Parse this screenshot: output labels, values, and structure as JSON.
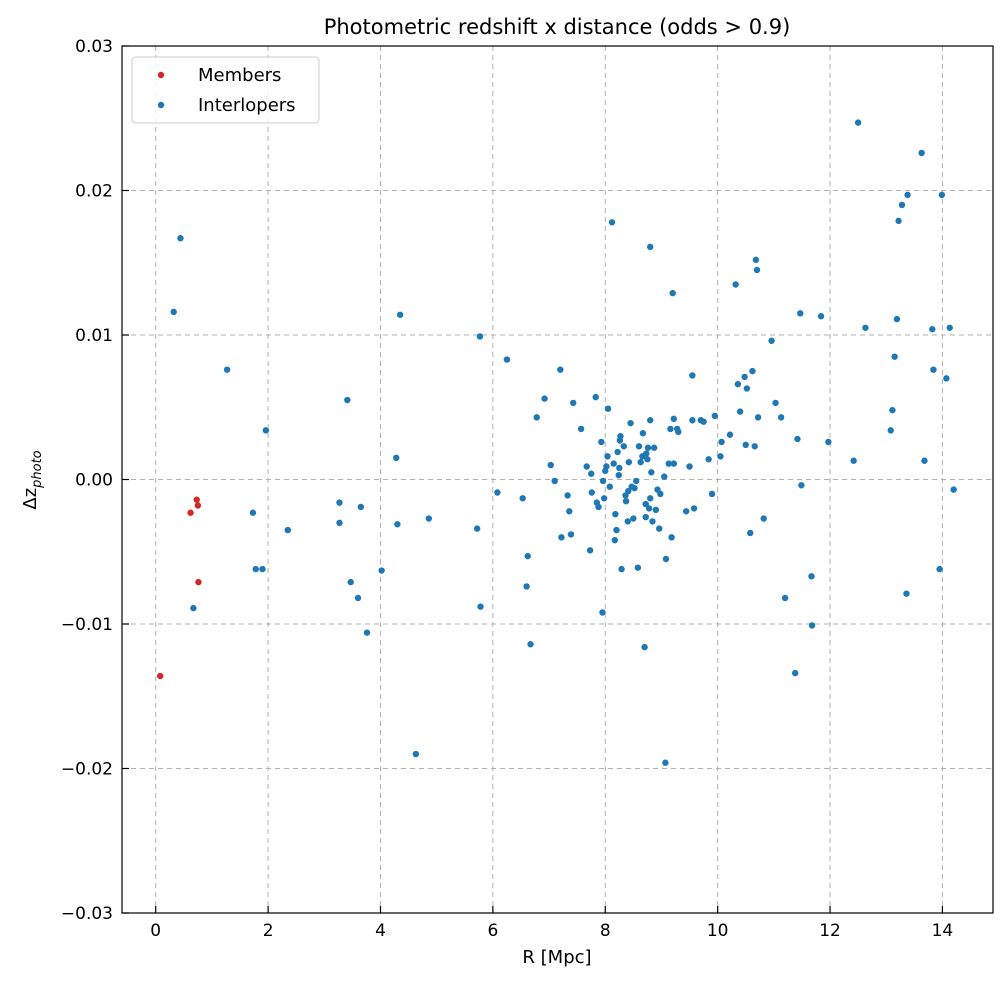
{
  "chart_data": {
    "type": "scatter",
    "title": "Photometric redshift x distance (odds > 0.9)",
    "xlabel": "R [Mpc]",
    "ylabel_main": "Δz",
    "ylabel_sub": "photo",
    "xlim": [
      -0.6,
      14.9
    ],
    "ylim": [
      -0.03,
      0.03
    ],
    "xticks": [
      0,
      2,
      4,
      6,
      8,
      10,
      12,
      14
    ],
    "xtick_labels": [
      "0",
      "2",
      "4",
      "6",
      "8",
      "10",
      "12",
      "14"
    ],
    "yticks": [
      -0.03,
      -0.02,
      -0.01,
      0.0,
      0.01,
      0.02,
      0.03
    ],
    "ytick_labels": [
      "−0.03",
      "−0.02",
      "−0.01",
      "0.00",
      "0.01",
      "0.02",
      "0.03"
    ],
    "grid": true,
    "legend_position": "top-left",
    "series": [
      {
        "name": "Members",
        "color": "#d62728",
        "points": [
          [
            0.08,
            -0.0136
          ],
          [
            0.62,
            -0.0023
          ],
          [
            0.73,
            -0.0014
          ],
          [
            0.75,
            -0.0018
          ],
          [
            0.76,
            -0.0071
          ]
        ]
      },
      {
        "name": "Interlopers",
        "color": "#1f77b4",
        "points": [
          [
            0.44,
            0.0167
          ],
          [
            0.32,
            0.0116
          ],
          [
            0.67,
            -0.0089
          ],
          [
            1.27,
            0.0076
          ],
          [
            1.73,
            -0.0023
          ],
          [
            1.78,
            -0.0062
          ],
          [
            1.9,
            -0.0062
          ],
          [
            1.96,
            0.0034
          ],
          [
            2.35,
            -0.0035
          ],
          [
            3.27,
            -0.0016
          ],
          [
            3.27,
            -0.003
          ],
          [
            3.41,
            0.0055
          ],
          [
            3.47,
            -0.0071
          ],
          [
            3.6,
            -0.0082
          ],
          [
            3.65,
            -0.0019
          ],
          [
            3.76,
            -0.0106
          ],
          [
            4.02,
            -0.0063
          ],
          [
            4.28,
            0.0015
          ],
          [
            4.3,
            -0.0031
          ],
          [
            4.35,
            0.0114
          ],
          [
            4.63,
            -0.019
          ],
          [
            4.86,
            -0.0027
          ],
          [
            5.72,
            -0.0034
          ],
          [
            5.77,
            0.0099
          ],
          [
            5.78,
            -0.0088
          ],
          [
            6.08,
            -0.0009
          ],
          [
            6.25,
            0.0083
          ],
          [
            6.53,
            -0.0013
          ],
          [
            6.6,
            -0.0074
          ],
          [
            6.62,
            -0.0053
          ],
          [
            6.67,
            -0.0114
          ],
          [
            6.78,
            0.0043
          ],
          [
            6.92,
            0.0056
          ],
          [
            7.03,
            0.001
          ],
          [
            7.1,
            -0.0001
          ],
          [
            7.2,
            0.0076
          ],
          [
            7.22,
            -0.004
          ],
          [
            7.33,
            -0.0011
          ],
          [
            7.36,
            -0.0022
          ],
          [
            7.39,
            -0.0038
          ],
          [
            7.43,
            0.0053
          ],
          [
            7.57,
            0.0035
          ],
          [
            7.67,
            0.0009
          ],
          [
            7.73,
            -0.0049
          ],
          [
            7.75,
            0.0004
          ],
          [
            7.76,
            -0.0009
          ],
          [
            7.83,
            0.0057
          ],
          [
            7.85,
            -0.0016
          ],
          [
            7.88,
            -0.0019
          ],
          [
            7.93,
            0.0026
          ],
          [
            7.95,
            -0.0092
          ],
          [
            7.96,
            -0.0001
          ],
          [
            7.98,
            -0.0013
          ],
          [
            8.0,
            0.0006
          ],
          [
            8.02,
            0.0009
          ],
          [
            8.04,
            0.0016
          ],
          [
            8.05,
            0.0049
          ],
          [
            8.08,
            -0.0005
          ],
          [
            8.12,
            0.0178
          ],
          [
            8.15,
            0.0011
          ],
          [
            8.17,
            -0.0042
          ],
          [
            8.18,
            -0.0024
          ],
          [
            8.2,
            -0.0035
          ],
          [
            8.22,
            0.0019
          ],
          [
            8.24,
            0.0003
          ],
          [
            8.25,
            0.0008
          ],
          [
            8.26,
            0.0027
          ],
          [
            8.27,
            0.003
          ],
          [
            8.29,
            -0.0062
          ],
          [
            8.33,
            0.0023
          ],
          [
            8.36,
            -0.0011
          ],
          [
            8.37,
            -0.0015
          ],
          [
            8.4,
            -0.0029
          ],
          [
            8.41,
            -0.0008
          ],
          [
            8.42,
            0.0012
          ],
          [
            8.45,
            0.0039
          ],
          [
            8.47,
            -0.0005
          ],
          [
            8.5,
            -0.0027
          ],
          [
            8.52,
            -0.0006
          ],
          [
            8.55,
            -0.0001
          ],
          [
            8.58,
            -0.0061
          ],
          [
            8.6,
            0.0023
          ],
          [
            8.63,
            0.0012
          ],
          [
            8.66,
            0.0016
          ],
          [
            8.67,
            0.0032
          ],
          [
            8.7,
            -0.0116
          ],
          [
            8.72,
            -0.0026
          ],
          [
            8.72,
            -0.0017
          ],
          [
            8.73,
            0.0018
          ],
          [
            8.75,
            0.0014
          ],
          [
            8.76,
            0.0022
          ],
          [
            8.78,
            -0.002
          ],
          [
            8.8,
            -0.0013
          ],
          [
            8.8,
            0.0041
          ],
          [
            8.8,
            0.0161
          ],
          [
            8.82,
            0.0005
          ],
          [
            8.84,
            -0.0029
          ],
          [
            8.87,
            0.0022
          ],
          [
            8.9,
            -0.0021
          ],
          [
            8.93,
            -0.0007
          ],
          [
            8.96,
            -0.0034
          ],
          [
            8.98,
            -0.001
          ],
          [
            9.05,
            0.0002
          ],
          [
            9.07,
            -0.0196
          ],
          [
            9.08,
            -0.0055
          ],
          [
            9.13,
            0.0011
          ],
          [
            9.16,
            0.0035
          ],
          [
            9.18,
            -0.004
          ],
          [
            9.2,
            0.0129
          ],
          [
            9.22,
            0.0042
          ],
          [
            9.22,
            0.0011
          ],
          [
            9.28,
            0.0035
          ],
          [
            9.3,
            0.0033
          ],
          [
            9.44,
            -0.0022
          ],
          [
            9.5,
            0.0009
          ],
          [
            9.55,
            0.0072
          ],
          [
            9.55,
            0.0041
          ],
          [
            9.58,
            -0.002
          ],
          [
            9.7,
            0.0041
          ],
          [
            9.75,
            0.004
          ],
          [
            9.84,
            0.0014
          ],
          [
            9.9,
            -0.001
          ],
          [
            9.95,
            0.0044
          ],
          [
            10.05,
            0.0016
          ],
          [
            10.07,
            0.0026
          ],
          [
            10.22,
            0.0031
          ],
          [
            10.32,
            0.0135
          ],
          [
            10.36,
            0.0066
          ],
          [
            10.4,
            0.0047
          ],
          [
            10.48,
            0.0071
          ],
          [
            10.5,
            0.0024
          ],
          [
            10.52,
            0.0063
          ],
          [
            10.58,
            -0.0037
          ],
          [
            10.62,
            0.0075
          ],
          [
            10.66,
            0.0023
          ],
          [
            10.68,
            0.0152
          ],
          [
            10.7,
            0.0145
          ],
          [
            10.72,
            0.0043
          ],
          [
            10.82,
            -0.0027
          ],
          [
            10.96,
            0.0096
          ],
          [
            11.03,
            0.0053
          ],
          [
            11.13,
            0.0043
          ],
          [
            11.2,
            -0.0082
          ],
          [
            11.38,
            -0.0134
          ],
          [
            11.42,
            0.0028
          ],
          [
            11.47,
            0.0115
          ],
          [
            11.49,
            -0.0004
          ],
          [
            11.67,
            -0.0067
          ],
          [
            11.68,
            -0.0101
          ],
          [
            11.84,
            0.0113
          ],
          [
            11.97,
            0.0026
          ],
          [
            12.42,
            0.0013
          ],
          [
            12.5,
            0.0247
          ],
          [
            12.63,
            0.0105
          ],
          [
            13.08,
            0.0034
          ],
          [
            13.11,
            0.0048
          ],
          [
            13.15,
            0.0085
          ],
          [
            13.19,
            0.0111
          ],
          [
            13.22,
            0.0179
          ],
          [
            13.28,
            0.019
          ],
          [
            13.36,
            -0.0079
          ],
          [
            13.38,
            0.0197
          ],
          [
            13.63,
            0.0226
          ],
          [
            13.68,
            0.0013
          ],
          [
            13.82,
            0.0104
          ],
          [
            13.84,
            0.0076
          ],
          [
            13.95,
            -0.0062
          ],
          [
            13.99,
            0.0197
          ],
          [
            14.07,
            0.007
          ],
          [
            14.13,
            0.0105
          ],
          [
            14.2,
            -0.0007
          ]
        ]
      }
    ]
  }
}
